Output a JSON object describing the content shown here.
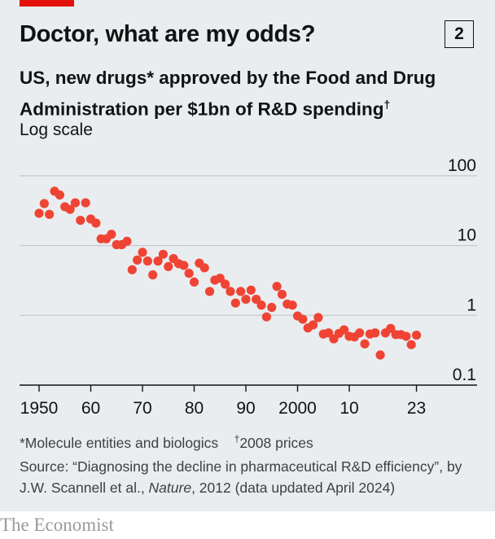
{
  "header": {
    "title": "Doctor, what are my odds?",
    "chart_number": "2",
    "subtitle_main": "US, new drugs* approved by the Food and Drug Administration per $1bn of R&D spending",
    "subtitle_mark": "†",
    "scale_note": "Log scale"
  },
  "footer": {
    "footnote_1": "*Molecule entities and biologics",
    "footnote_2_mark": "†",
    "footnote_2": "2008 prices",
    "source_prefix": "Source: “Diagnosing the decline in pharmaceutical R&D efficiency”, by J.W. Scannell et al., ",
    "source_journal": "Nature",
    "source_suffix": ", 2012 (data updated April 2024)",
    "brand": "The Economist"
  },
  "colors": {
    "accent_red": "#e3120b",
    "dot": "#ef4434",
    "background": "#e9edf0",
    "grid": "#c3c9cf"
  },
  "chart_data": {
    "type": "scatter",
    "title": "Doctor, what are my odds?",
    "ylabel": "US, new drugs* approved by the Food and Drug Administration per $1bn of R&D spending†",
    "y_scale": "log",
    "ylim": [
      0.1,
      100
    ],
    "y_ticks": [
      0.1,
      1,
      10,
      100
    ],
    "y_tick_labels": [
      "0.1",
      "1",
      "10",
      "100"
    ],
    "xlim": [
      1948,
      2025
    ],
    "x_ticks": [
      1950,
      1960,
      1970,
      1980,
      1990,
      2000,
      2010,
      2023
    ],
    "x_tick_labels": [
      "1950",
      "60",
      "70",
      "80",
      "90",
      "2000",
      "10",
      "23"
    ],
    "grid": true,
    "x": [
      1950,
      1951,
      1952,
      1953,
      1954,
      1955,
      1956,
      1957,
      1958,
      1959,
      1960,
      1961,
      1962,
      1963,
      1964,
      1965,
      1966,
      1967,
      1968,
      1969,
      1970,
      1971,
      1972,
      1973,
      1974,
      1975,
      1976,
      1977,
      1978,
      1979,
      1980,
      1981,
      1982,
      1983,
      1984,
      1985,
      1986,
      1987,
      1988,
      1989,
      1990,
      1991,
      1992,
      1993,
      1994,
      1995,
      1996,
      1997,
      1998,
      1999,
      2000,
      2001,
      2002,
      2003,
      2004,
      2005,
      2006,
      2007,
      2008,
      2009,
      2010,
      2011,
      2012,
      2013,
      2014,
      2015,
      2016,
      2017,
      2018,
      2019,
      2020,
      2021,
      2022,
      2023
    ],
    "y": [
      29,
      40,
      28,
      60,
      53,
      36,
      33,
      41,
      23,
      41,
      24,
      21,
      12.5,
      12.5,
      14.5,
      10.3,
      10.3,
      11.5,
      4.5,
      6.2,
      8,
      6,
      3.8,
      6,
      7.5,
      5,
      6.5,
      5.5,
      5.2,
      4,
      3,
      5.6,
      4.8,
      2.2,
      3.2,
      3.4,
      2.8,
      2.2,
      1.5,
      2.2,
      1.7,
      2.3,
      1.7,
      1.4,
      0.95,
      1.3,
      2.6,
      2,
      1.45,
      1.4,
      0.98,
      0.88,
      0.66,
      0.73,
      0.93,
      0.54,
      0.56,
      0.46,
      0.55,
      0.62,
      0.5,
      0.49,
      0.56,
      0.39,
      0.54,
      0.56,
      0.27,
      0.56,
      0.65,
      0.53,
      0.53,
      0.5,
      0.38,
      0.52
    ]
  }
}
